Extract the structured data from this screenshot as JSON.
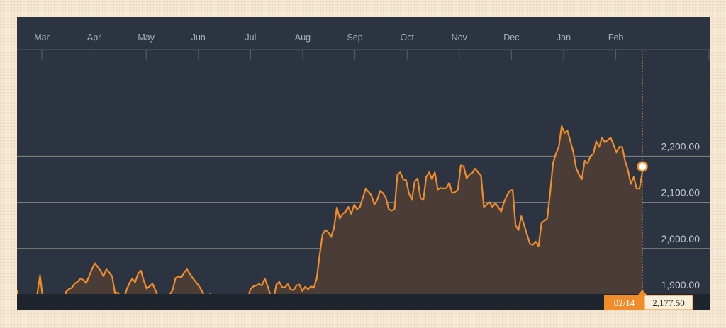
{
  "chart_data": {
    "type": "area",
    "title": "",
    "xlabel": "",
    "ylabel": "",
    "x_tick_labels": [
      "Mar",
      "Apr",
      "May",
      "Jun",
      "Jul",
      "Aug",
      "Sep",
      "Oct",
      "Nov",
      "Dec",
      "Jan",
      "Feb"
    ],
    "y_tick_labels": [
      "1,900.00",
      "2,000.00",
      "2,100.00",
      "2,200.00"
    ],
    "y_ticks": [
      1900,
      2000,
      2100,
      2200
    ],
    "ylim": [
      1815,
      2290
    ],
    "grid": true,
    "series": [
      {
        "color": "#f08c2a",
        "values": [
          1910,
          1880,
          1890,
          1900,
          1875,
          1893,
          1895,
          1900,
          1942,
          1890,
          1882,
          1876,
          1874,
          1867,
          1877,
          1875,
          1866,
          1906,
          1912,
          1915,
          1924,
          1928,
          1935,
          1932,
          1925,
          1940,
          1955,
          1968,
          1960,
          1952,
          1940,
          1955,
          1948,
          1940,
          1903,
          1905,
          1893,
          1892,
          1910,
          1925,
          1935,
          1927,
          1945,
          1952,
          1930,
          1913,
          1918,
          1924,
          1910,
          1895,
          1878,
          1870,
          1889,
          1900,
          1910,
          1936,
          1940,
          1937,
          1948,
          1955,
          1945,
          1936,
          1928,
          1920,
          1910,
          1898,
          1895,
          1901,
          1892,
          1890,
          1880,
          1870,
          1878,
          1885,
          1870,
          1867,
          1880,
          1870,
          1868,
          1865,
          1890,
          1912,
          1918,
          1920,
          1923,
          1920,
          1935,
          1918,
          1898,
          1890,
          1922,
          1928,
          1916,
          1916,
          1923,
          1911,
          1910,
          1920,
          1922,
          1908,
          1917,
          1912,
          1918,
          1915,
          1935,
          1985,
          2030,
          2040,
          2035,
          2025,
          2045,
          2089,
          2065,
          2075,
          2080,
          2090,
          2075,
          2095,
          2085,
          2090,
          2110,
          2129,
          2123,
          2115,
          2095,
          2105,
          2125,
          2120,
          2110,
          2085,
          2082,
          2085,
          2160,
          2165,
          2150,
          2148,
          2120,
          2105,
          2145,
          2152,
          2110,
          2105,
          2155,
          2165,
          2150,
          2165,
          2128,
          2131,
          2130,
          2131,
          2142,
          2120,
          2122,
          2128,
          2180,
          2178,
          2152,
          2160,
          2164,
          2173,
          2165,
          2158,
          2090,
          2095,
          2100,
          2090,
          2098,
          2090,
          2080,
          2100,
          2115,
          2125,
          2127,
          2050,
          2040,
          2070,
          2050,
          2030,
          2010,
          2008,
          2015,
          2005,
          2055,
          2060,
          2065,
          2120,
          2185,
          2205,
          2220,
          2265,
          2250,
          2255,
          2233,
          2210,
          2175,
          2160,
          2150,
          2190,
          2185,
          2200,
          2205,
          2232,
          2220,
          2240,
          2230,
          2235,
          2240,
          2225,
          2208,
          2220,
          2220,
          2190,
          2170,
          2140,
          2155,
          2130,
          2130,
          2165
        ]
      }
    ],
    "current_value": {
      "date_label": "02/14",
      "value_label": "2,177.50",
      "value": 2177.5
    }
  }
}
